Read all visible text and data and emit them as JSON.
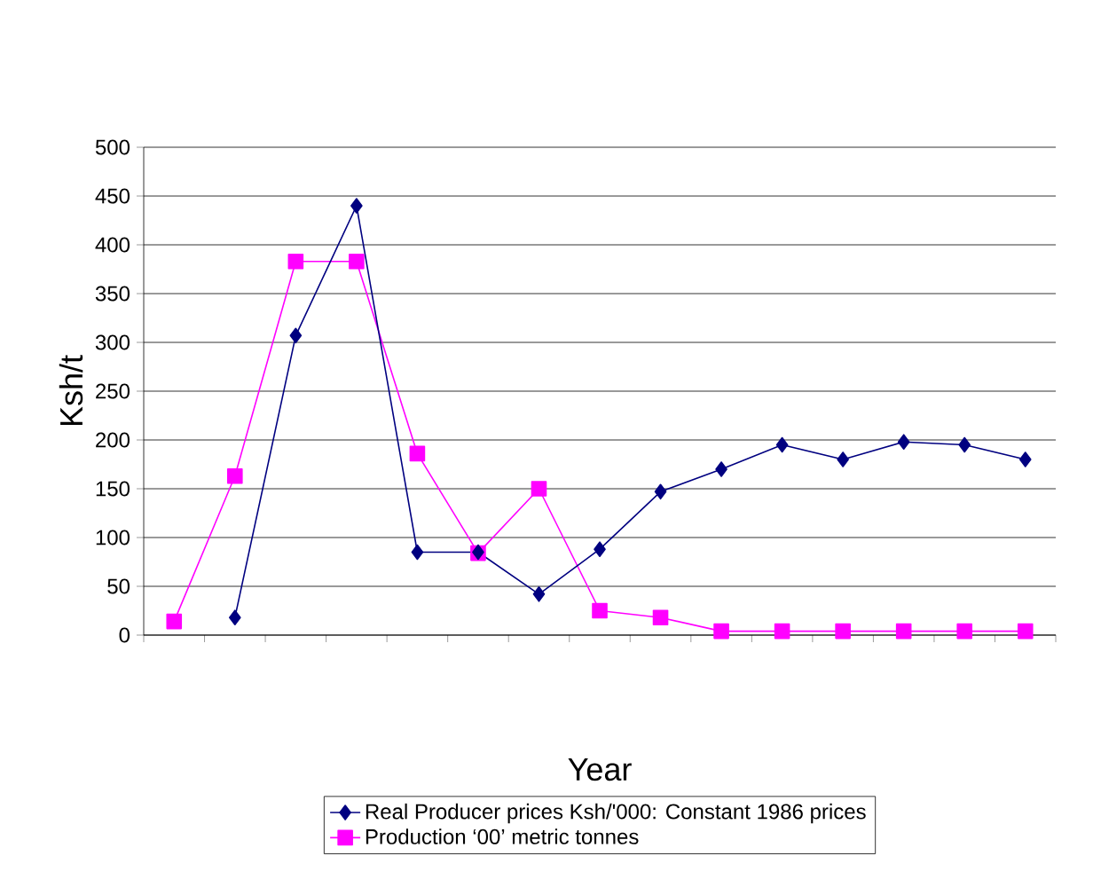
{
  "chart_data": {
    "type": "line",
    "xlabel": "Year",
    "ylabel": "Ksh/t",
    "categories": [
      null,
      null,
      null,
      null,
      null,
      null,
      null,
      null,
      null,
      null,
      null,
      null,
      null,
      null,
      null
    ],
    "series": [
      {
        "name": "Real Producer prices Ksh/'000: Constant 1986 prices",
        "color": "#000080",
        "marker": "diamond",
        "values": [
          null,
          18,
          307,
          440,
          85,
          85,
          42,
          88,
          147,
          170,
          195,
          180,
          198,
          195,
          180
        ]
      },
      {
        "name": "Production ‘00’ metric tonnes",
        "color": "#ff00ff",
        "marker": "square",
        "values": [
          14,
          163,
          383,
          383,
          186,
          84,
          150,
          25,
          18,
          4,
          4,
          4,
          4,
          4,
          4
        ]
      }
    ],
    "ylim": [
      0,
      500
    ],
    "yticks": [
      0,
      50,
      100,
      150,
      200,
      250,
      300,
      350,
      400,
      450,
      500
    ],
    "grid": "y",
    "legend": "bottom",
    "line_style": "solid"
  }
}
